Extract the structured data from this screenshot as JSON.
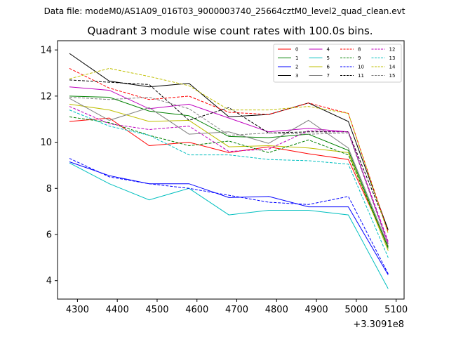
{
  "suptitle": "Data file: modeM0/AS1A09_016T03_9000003740_25664cztM0_level2_quad_clean.evt",
  "chart_data": {
    "type": "line",
    "title": "Quadrant 3 module wise count rates with 100.0s bins.",
    "xlabel": "",
    "ylabel": "",
    "x_offset_label": "+3.3091e8",
    "x": [
      4280,
      4380,
      4480,
      4580,
      4680,
      4780,
      4880,
      4980,
      5080
    ],
    "xlim": [
      4250,
      5120
    ],
    "ylim": [
      3.2,
      14.4
    ],
    "xticks": [
      4300,
      4400,
      4500,
      4600,
      4700,
      4800,
      4900,
      5000,
      5100
    ],
    "yticks": [
      4,
      6,
      8,
      10,
      12,
      14
    ],
    "grid": false,
    "legend_position": "top-right",
    "series": [
      {
        "name": "0",
        "color": "#ff0000",
        "dash": "solid",
        "values": [
          10.9,
          11.05,
          9.85,
          10.0,
          9.55,
          9.8,
          9.5,
          9.25,
          5.5
        ]
      },
      {
        "name": "1",
        "color": "#008000",
        "dash": "solid",
        "values": [
          12.0,
          11.95,
          11.35,
          11.15,
          10.25,
          10.2,
          10.35,
          9.65,
          5.4
        ]
      },
      {
        "name": "2",
        "color": "#0000ff",
        "dash": "solid",
        "values": [
          9.15,
          8.55,
          8.2,
          8.2,
          7.6,
          7.65,
          7.2,
          7.2,
          4.25
        ]
      },
      {
        "name": "3",
        "color": "#000000",
        "dash": "solid",
        "values": [
          13.85,
          12.65,
          12.4,
          12.55,
          11.1,
          11.2,
          11.7,
          10.9,
          6.2
        ]
      },
      {
        "name": "4",
        "color": "#bf00bf",
        "dash": "solid",
        "values": [
          12.4,
          12.25,
          11.45,
          11.65,
          11.05,
          10.45,
          10.6,
          10.45,
          5.6
        ]
      },
      {
        "name": "5",
        "color": "#00bfbf",
        "dash": "solid",
        "values": [
          9.1,
          8.2,
          7.5,
          8.0,
          6.85,
          7.05,
          7.05,
          6.85,
          3.65
        ]
      },
      {
        "name": "6",
        "color": "#bfbf00",
        "dash": "solid",
        "values": [
          11.65,
          11.4,
          10.9,
          10.95,
          9.8,
          9.85,
          9.75,
          9.55,
          5.3
        ]
      },
      {
        "name": "7",
        "color": "#808080",
        "dash": "solid",
        "values": [
          11.9,
          10.95,
          11.5,
          10.35,
          10.45,
          9.95,
          10.95,
          9.75,
          5.5
        ]
      },
      {
        "name": "8",
        "color": "#ff0000",
        "dash": "dashed",
        "values": [
          13.2,
          12.35,
          11.85,
          12.0,
          11.3,
          11.2,
          11.7,
          11.25,
          6.1
        ]
      },
      {
        "name": "9",
        "color": "#008000",
        "dash": "dashed",
        "values": [
          11.1,
          10.85,
          10.3,
          9.85,
          10.05,
          9.55,
          10.1,
          9.45,
          5.45
        ]
      },
      {
        "name": "10",
        "color": "#0000ff",
        "dash": "dashed",
        "values": [
          9.3,
          8.5,
          8.2,
          8.0,
          7.7,
          7.4,
          7.3,
          7.65,
          4.3
        ]
      },
      {
        "name": "11",
        "color": "#000000",
        "dash": "dashed",
        "values": [
          12.7,
          12.6,
          12.5,
          10.95,
          11.5,
          10.4,
          10.45,
          10.45,
          6.2
        ]
      },
      {
        "name": "12",
        "color": "#bf00bf",
        "dash": "dashed",
        "values": [
          11.55,
          10.8,
          10.55,
          10.7,
          9.6,
          9.7,
          10.5,
          10.45,
          5.7
        ]
      },
      {
        "name": "13",
        "color": "#00bfbf",
        "dash": "dashed",
        "values": [
          11.4,
          10.7,
          10.3,
          9.45,
          9.45,
          9.25,
          9.2,
          9.05,
          5.0
        ]
      },
      {
        "name": "14",
        "color": "#bfbf00",
        "dash": "dashed",
        "values": [
          12.75,
          13.2,
          12.85,
          12.45,
          11.4,
          11.4,
          11.55,
          11.25,
          6.05
        ]
      },
      {
        "name": "15",
        "color": "#808080",
        "dash": "dashed",
        "values": [
          11.95,
          11.85,
          11.95,
          11.45,
          10.3,
          10.4,
          10.35,
          10.4,
          5.55
        ]
      }
    ]
  }
}
